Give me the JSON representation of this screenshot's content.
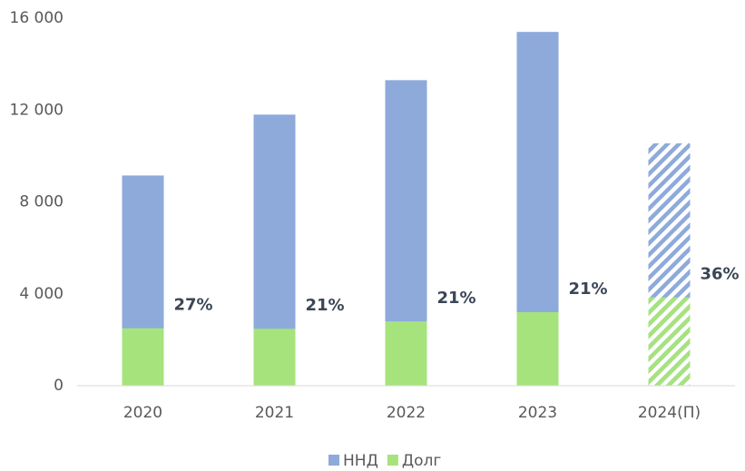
{
  "chart_data": {
    "type": "bar",
    "overlap": true,
    "categories": [
      "2020",
      "2021",
      "2022",
      "2023",
      "2024(П)"
    ],
    "series": [
      {
        "name": "ННД",
        "color": "#8eaadb",
        "values": [
          9150,
          11800,
          13300,
          15400,
          10550
        ]
      },
      {
        "name": "Долг",
        "color": "#a6e37c",
        "values": [
          2500,
          2480,
          2800,
          3200,
          3850
        ]
      }
    ],
    "annotations": [
      "27%",
      "21%",
      "21%",
      "21%",
      "36%"
    ],
    "hatched": [
      false,
      false,
      false,
      false,
      true
    ],
    "ylim": [
      0,
      16000
    ],
    "yticks": [
      0,
      {
        "value": 4000,
        "label": "4 000"
      },
      {
        "value": 8000,
        "label": "8 000"
      },
      {
        "value": 12000,
        "label": "12 000"
      },
      {
        "value": 16000,
        "label": "16 000"
      }
    ],
    "legend": "bottom"
  }
}
